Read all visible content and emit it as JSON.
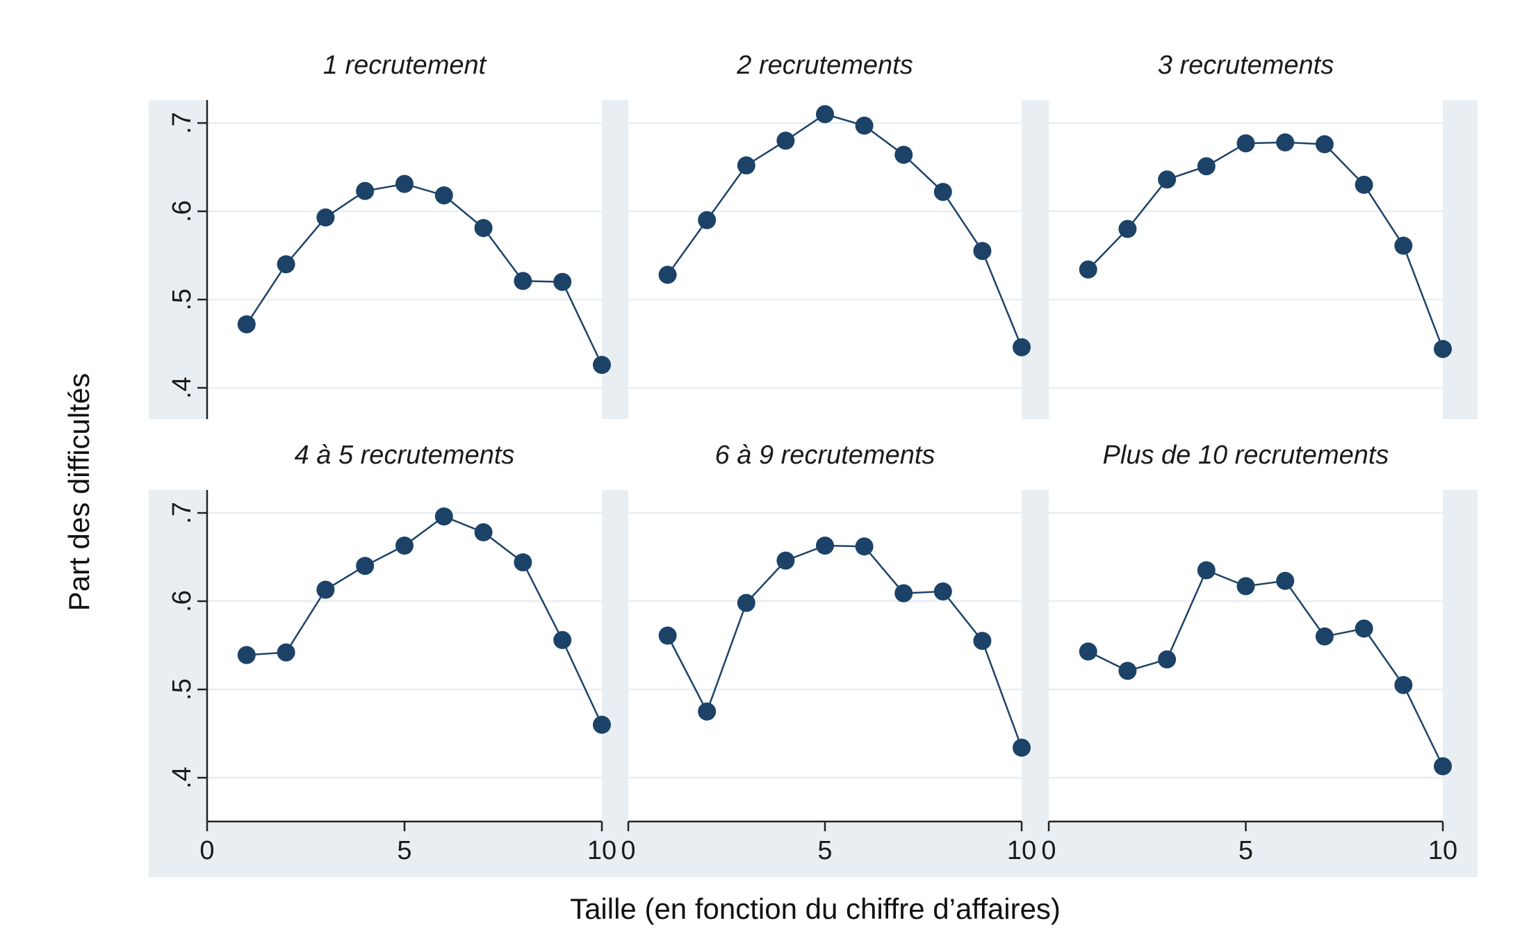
{
  "chart_data": {
    "type": "line",
    "layout": "small-multiples",
    "xlabel": "Taille (en fonction du chiffre d’affaires)",
    "ylabel": "Part des difficultés",
    "xlim": [
      0,
      10
    ],
    "ylim": [
      0.4,
      0.7
    ],
    "xticks": [
      0,
      5,
      10
    ],
    "xtick_labels": [
      "0",
      "5",
      "10"
    ],
    "yticks": [
      0.4,
      0.5,
      0.6,
      0.7
    ],
    "ytick_labels": [
      ".4",
      ".5",
      ".6",
      ".7"
    ],
    "grid": true,
    "marker": "circle",
    "color": "#1c4268",
    "panel_background": "#e8eef2",
    "x": [
      1,
      2,
      3,
      4,
      5,
      6,
      7,
      8,
      9,
      10
    ],
    "panels": [
      {
        "title": "1 recrutement",
        "values": [
          0.472,
          0.54,
          0.593,
          0.623,
          0.631,
          0.618,
          0.581,
          0.521,
          0.52,
          0.426
        ]
      },
      {
        "title": "2 recrutements",
        "values": [
          0.528,
          0.59,
          0.652,
          0.68,
          0.71,
          0.697,
          0.664,
          0.622,
          0.555,
          0.446
        ]
      },
      {
        "title": "3 recrutements",
        "values": [
          0.534,
          0.58,
          0.636,
          0.651,
          0.677,
          0.678,
          0.676,
          0.63,
          0.561,
          0.444
        ]
      },
      {
        "title": "4 à 5 recrutements",
        "values": [
          0.539,
          0.542,
          0.613,
          0.64,
          0.663,
          0.696,
          0.678,
          0.644,
          0.556,
          0.46
        ]
      },
      {
        "title": "6 à 9 recrutements",
        "values": [
          0.561,
          0.475,
          0.598,
          0.646,
          0.663,
          0.662,
          0.609,
          0.611,
          0.555,
          0.434
        ]
      },
      {
        "title": "Plus de 10 recrutements",
        "values": [
          0.543,
          0.521,
          0.534,
          0.635,
          0.617,
          0.623,
          0.56,
          0.569,
          0.505,
          0.413
        ]
      }
    ]
  }
}
